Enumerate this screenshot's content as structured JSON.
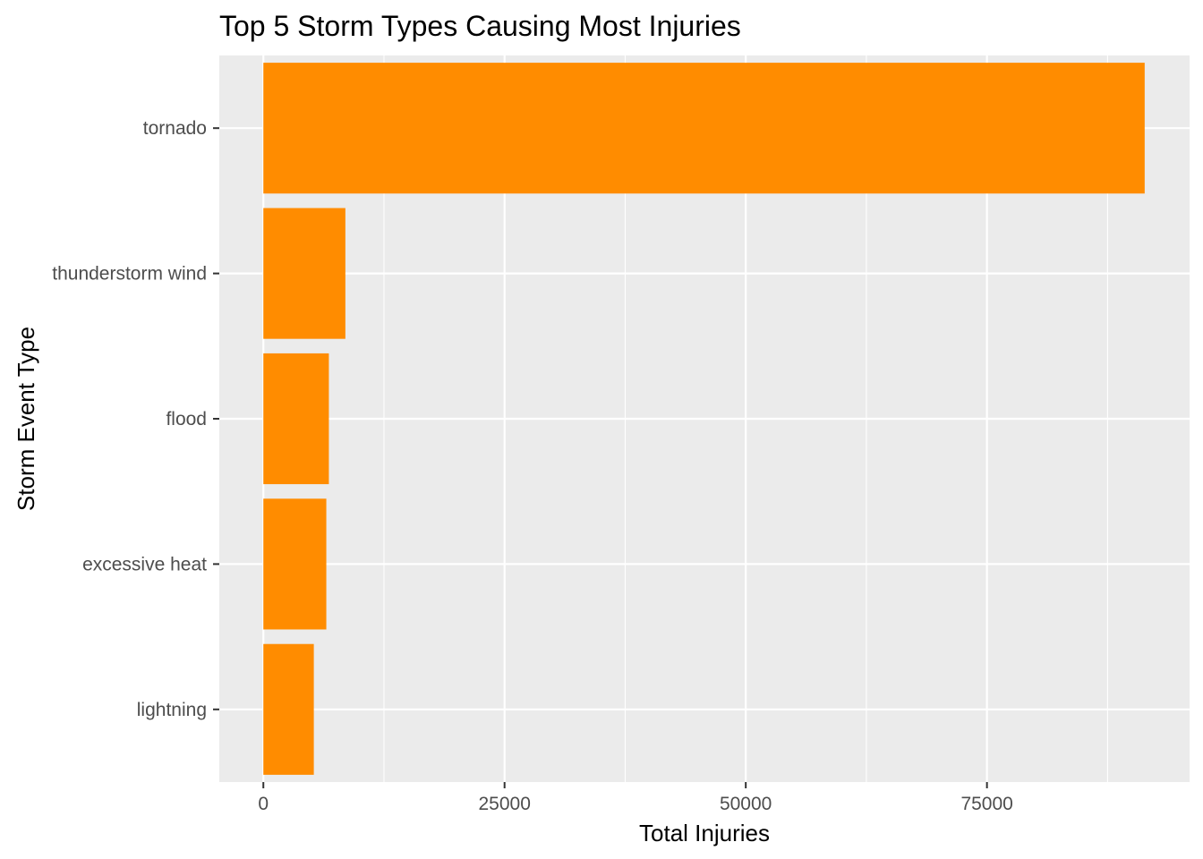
{
  "chart_data": {
    "type": "bar",
    "orientation": "horizontal",
    "title": "Top 5 Storm Types Causing Most Injuries",
    "xlabel": "Total Injuries",
    "ylabel": "Storm Event Type",
    "categories": [
      "tornado",
      "thunderstorm wind",
      "flood",
      "excessive heat",
      "lightning"
    ],
    "values": [
      91346,
      8500,
      6790,
      6525,
      5230
    ],
    "xlim": [
      -4567,
      96000
    ],
    "xticks": [
      0,
      25000,
      50000,
      75000
    ],
    "xtick_labels": [
      "0",
      "25000",
      "50000",
      "75000"
    ],
    "grid": true,
    "bar_color": "#ff8c00",
    "panel_background": "#ebebeb",
    "grid_color": "#ffffff"
  }
}
